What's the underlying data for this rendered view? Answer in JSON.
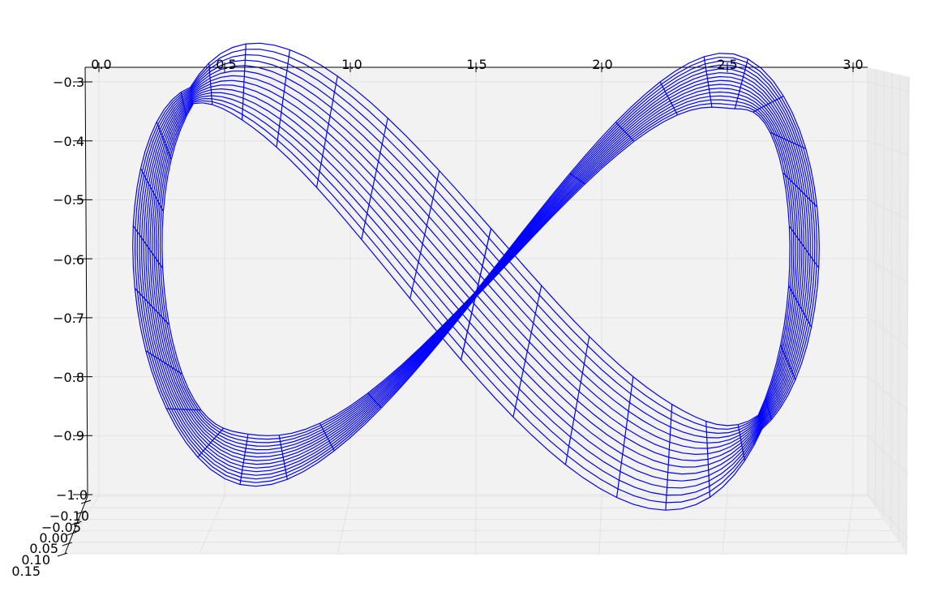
{
  "chart_data": {
    "type": "3d-wireframe",
    "title": "",
    "xlabel": "",
    "ylabel": "",
    "zlabel": "",
    "x_ticks": [
      "0.0",
      "0.5",
      "1.0",
      "1.5",
      "2.0",
      "2.5",
      "3.0"
    ],
    "z_ticks": [
      "−0.3",
      "−0.4",
      "−0.5",
      "−0.6",
      "−0.7",
      "−0.8",
      "−0.9",
      "−1.0"
    ],
    "y_ticks": [
      "−0.10",
      "−0.05",
      "0.00",
      "0.05",
      "0.10",
      "0.15"
    ],
    "xlim": [
      0,
      3
    ],
    "zlim": [
      -1.0,
      -0.3
    ],
    "ylim": [
      -0.1,
      0.15
    ],
    "series": [
      {
        "surface": "figure-eight ribbon (twisted lemniscate band)",
        "color": "#0000ff",
        "curve_samples": [
          {
            "x": 1.5,
            "z": -0.66
          },
          {
            "x": 1.85,
            "z": -0.5
          },
          {
            "x": 2.3,
            "z": -0.33
          },
          {
            "x": 2.6,
            "z": -0.55
          },
          {
            "x": 2.8,
            "z": -0.78
          },
          {
            "x": 2.45,
            "z": -0.93
          },
          {
            "x": 1.95,
            "z": -0.82
          },
          {
            "x": 1.5,
            "z": -0.66
          },
          {
            "x": 1.05,
            "z": -0.5
          },
          {
            "x": 0.7,
            "z": -0.33
          },
          {
            "x": 0.4,
            "z": -0.55
          },
          {
            "x": 0.2,
            "z": -0.78
          },
          {
            "x": 0.55,
            "z": -0.93
          },
          {
            "x": 1.05,
            "z": -0.82
          }
        ]
      }
    ],
    "grid": true
  }
}
